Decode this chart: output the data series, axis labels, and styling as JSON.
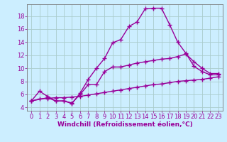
{
  "background_color": "#cceeff",
  "grid_color": "#aacccc",
  "line_color": "#990099",
  "marker": "+",
  "markersize": 4,
  "linewidth": 1.0,
  "xlabel": "Windchill (Refroidissement éolien,°C)",
  "xlabel_fontsize": 6.5,
  "tick_fontsize": 6.0,
  "xlim": [
    -0.5,
    23.5
  ],
  "ylim": [
    3.5,
    19.8
  ],
  "yticks": [
    4,
    6,
    8,
    10,
    12,
    14,
    16,
    18
  ],
  "xticks": [
    0,
    1,
    2,
    3,
    4,
    5,
    6,
    7,
    8,
    9,
    10,
    11,
    12,
    13,
    14,
    15,
    16,
    17,
    18,
    19,
    20,
    21,
    22,
    23
  ],
  "line1_x": [
    0,
    1,
    2,
    3,
    4,
    5,
    6,
    7,
    8,
    9,
    10,
    11,
    12,
    13,
    14,
    15,
    16,
    17,
    18,
    19,
    20,
    21,
    22,
    23
  ],
  "line1_y": [
    5.0,
    6.5,
    5.7,
    5.0,
    5.0,
    4.6,
    6.2,
    8.3,
    10.0,
    11.5,
    13.9,
    14.4,
    16.4,
    17.1,
    19.1,
    19.2,
    19.2,
    16.7,
    14.0,
    12.3,
    10.3,
    9.5,
    9.0,
    9.0
  ],
  "line2_x": [
    0,
    2,
    3,
    4,
    5,
    6,
    7,
    8,
    9,
    10,
    11,
    12,
    13,
    14,
    15,
    16,
    17,
    18,
    19,
    20,
    21,
    22,
    23
  ],
  "line2_y": [
    5.0,
    5.5,
    5.0,
    5.0,
    4.7,
    6.0,
    7.5,
    7.5,
    9.5,
    10.2,
    10.2,
    10.5,
    10.8,
    11.0,
    11.2,
    11.4,
    11.5,
    11.8,
    12.2,
    11.0,
    10.0,
    9.2,
    9.2
  ],
  "line3_x": [
    0,
    1,
    2,
    3,
    4,
    5,
    6,
    7,
    8,
    9,
    10,
    11,
    12,
    13,
    14,
    15,
    16,
    17,
    18,
    19,
    20,
    21,
    22,
    23
  ],
  "line3_y": [
    5.0,
    5.3,
    5.4,
    5.5,
    5.5,
    5.6,
    5.7,
    5.9,
    6.1,
    6.3,
    6.5,
    6.7,
    6.9,
    7.1,
    7.3,
    7.5,
    7.6,
    7.8,
    8.0,
    8.1,
    8.2,
    8.3,
    8.5,
    8.7
  ]
}
